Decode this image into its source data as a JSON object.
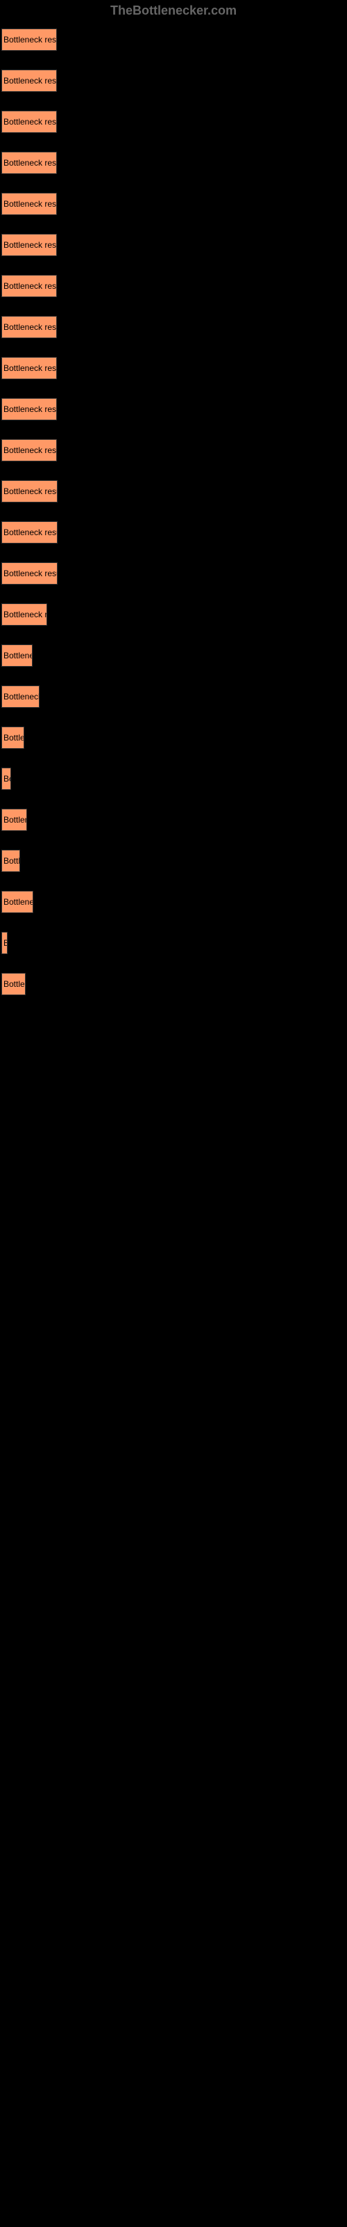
{
  "header": {
    "title": "TheBottlenecker.com"
  },
  "buttons": [
    {
      "label": "Bottleneck result",
      "width": 80
    },
    {
      "label": "Bottleneck result",
      "width": 80
    },
    {
      "label": "Bottleneck result",
      "width": 80
    },
    {
      "label": "Bottleneck result",
      "width": 80
    },
    {
      "label": "Bottleneck result",
      "width": 80
    },
    {
      "label": "Bottleneck result",
      "width": 80
    },
    {
      "label": "Bottleneck result",
      "width": 80
    },
    {
      "label": "Bottleneck result",
      "width": 80
    },
    {
      "label": "Bottleneck result",
      "width": 80
    },
    {
      "label": "Bottleneck result",
      "width": 80
    },
    {
      "label": "Bottleneck result",
      "width": 80
    },
    {
      "label": "Bottleneck result",
      "width": 81
    },
    {
      "label": "Bottleneck result",
      "width": 81
    },
    {
      "label": "Bottleneck result",
      "width": 81
    },
    {
      "label": "Bottleneck re",
      "width": 66
    },
    {
      "label": "Bottlene",
      "width": 45
    },
    {
      "label": "Bottleneck",
      "width": 55
    },
    {
      "label": "Bottle",
      "width": 33
    },
    {
      "label": "Bo",
      "width": 14
    },
    {
      "label": "Bottler",
      "width": 37
    },
    {
      "label": "Bottl",
      "width": 27
    },
    {
      "label": "Bottlene",
      "width": 46
    },
    {
      "label": "B",
      "width": 9
    },
    {
      "label": "Bottle",
      "width": 35
    }
  ]
}
